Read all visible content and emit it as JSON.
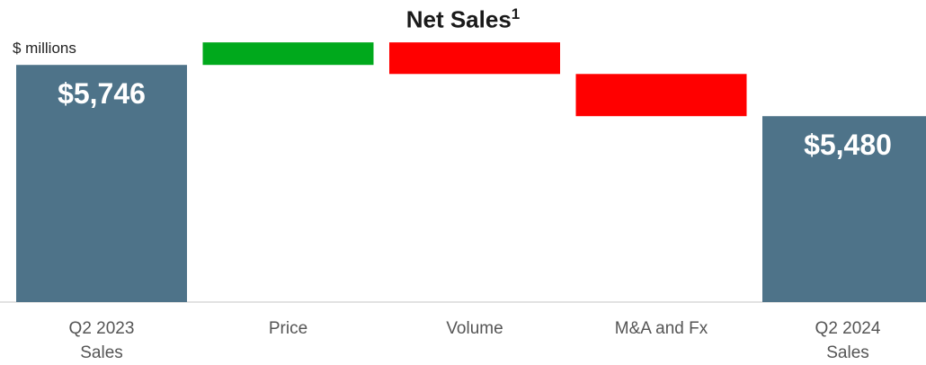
{
  "chart_data": {
    "type": "waterfall",
    "title": "Net Sales",
    "title_footnote": "1",
    "unit_label": "$ millions",
    "categories": [
      "Q2 2023\nSales",
      "Price",
      "Volume",
      "M&A and Fx",
      "Q2 2024\nSales"
    ],
    "values": [
      5746,
      117,
      -164,
      -219,
      5480
    ],
    "value_labels": [
      "$5,746",
      null,
      null,
      null,
      "$5,480"
    ],
    "measure": [
      "total",
      "relative",
      "relative",
      "relative",
      "total"
    ],
    "colors": [
      "#4e7389",
      "#00a91c",
      "#ff0000",
      "#ff0000",
      "#4e7389"
    ],
    "ylim": [
      4515,
      5880
    ]
  }
}
